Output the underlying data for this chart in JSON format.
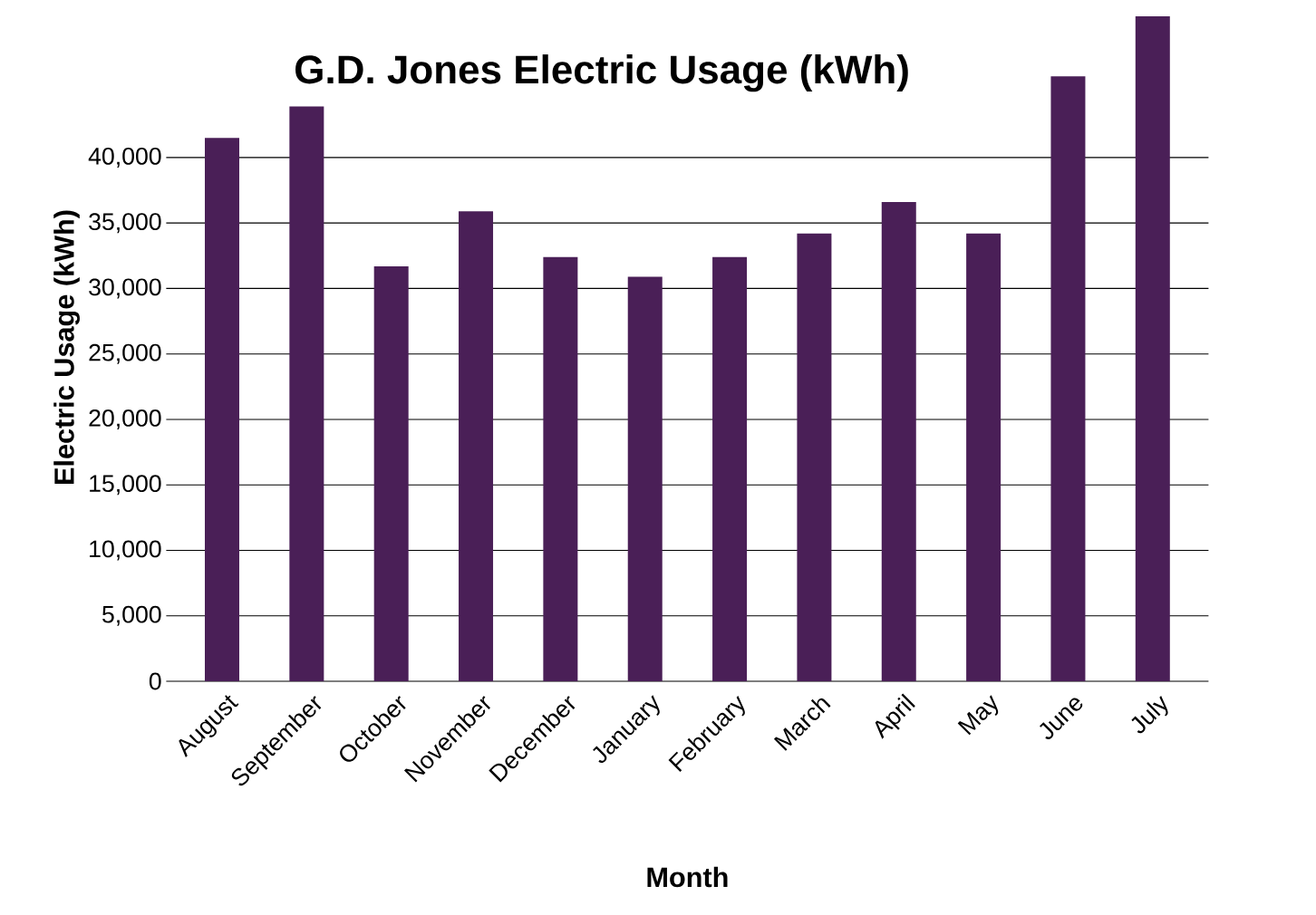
{
  "chart_data": {
    "type": "bar",
    "title": "G.D. Jones Electric Usage (kWh)",
    "xlabel": "Month",
    "ylabel": "Electric Usage (kWh)",
    "categories": [
      "August",
      "September",
      "October",
      "November",
      "December",
      "January",
      "February",
      "March",
      "April",
      "May",
      "June",
      "July"
    ],
    "values": [
      41500,
      43900,
      31700,
      35900,
      32400,
      30900,
      32400,
      34200,
      36600,
      34200,
      46200,
      50800
    ],
    "color": "#4a1f57",
    "ylim": [
      0,
      51000
    ],
    "yticks": [
      {
        "value": 0,
        "label": "0"
      },
      {
        "value": 5000,
        "label": "5,000"
      },
      {
        "value": 10000,
        "label": "10,000"
      },
      {
        "value": 15000,
        "label": "15,000"
      },
      {
        "value": 20000,
        "label": "20,000"
      },
      {
        "value": 25000,
        "label": "25,000"
      },
      {
        "value": 30000,
        "label": "30,000"
      },
      {
        "value": 35000,
        "label": "35,000"
      },
      {
        "value": 40000,
        "label": "40,000"
      }
    ],
    "grid": "y"
  }
}
